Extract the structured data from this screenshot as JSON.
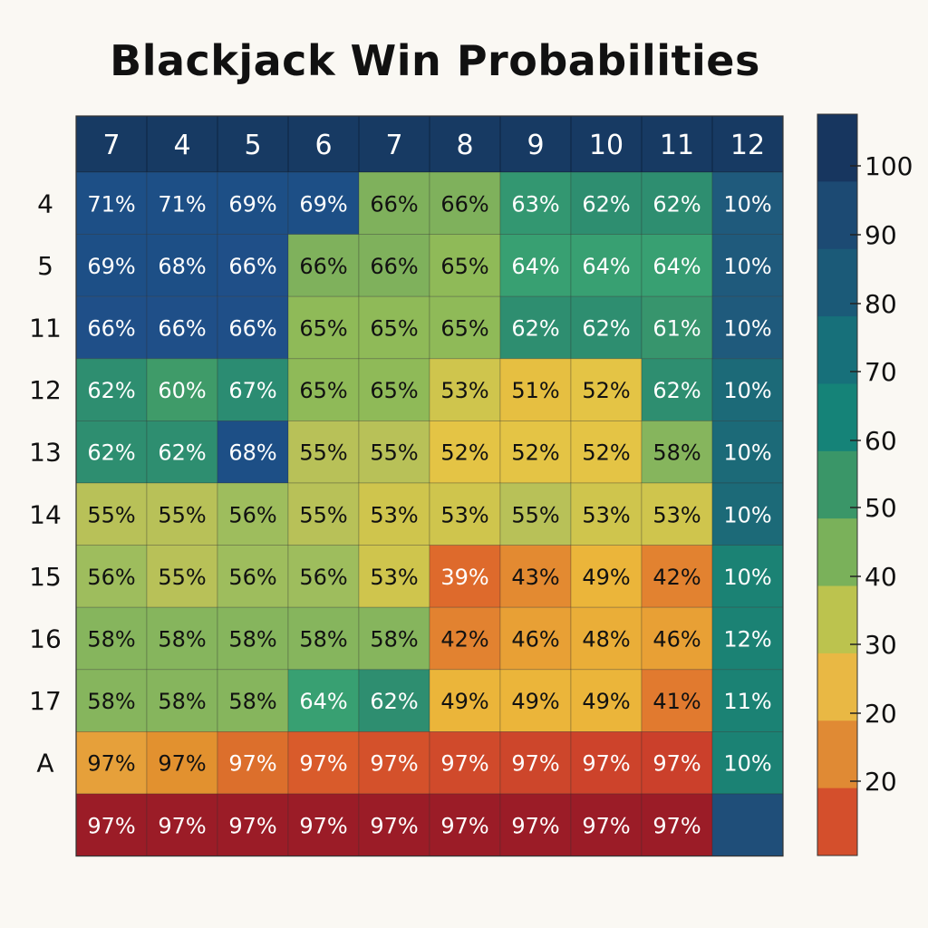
{
  "chart_data": {
    "type": "heatmap",
    "title": "Blackjack Win Probabilities",
    "columns": [
      "7",
      "4",
      "5",
      "6",
      "7",
      "8",
      "9",
      "10",
      "11",
      "12"
    ],
    "rows": [
      "4",
      "5",
      "11",
      "12",
      "13",
      "14",
      "15",
      "16",
      "17",
      "A",
      ""
    ],
    "values": [
      [
        71,
        71,
        69,
        69,
        66,
        66,
        63,
        62,
        62,
        10
      ],
      [
        69,
        68,
        66,
        66,
        66,
        65,
        64,
        64,
        64,
        10
      ],
      [
        66,
        66,
        66,
        65,
        65,
        65,
        62,
        62,
        61,
        10
      ],
      [
        62,
        60,
        67,
        65,
        65,
        53,
        51,
        52,
        62,
        10
      ],
      [
        62,
        62,
        68,
        55,
        55,
        52,
        52,
        52,
        58,
        10
      ],
      [
        55,
        55,
        56,
        55,
        53,
        53,
        55,
        53,
        53,
        10
      ],
      [
        56,
        55,
        56,
        56,
        53,
        39,
        43,
        49,
        42,
        10
      ],
      [
        58,
        58,
        58,
        58,
        58,
        42,
        46,
        48,
        46,
        12
      ],
      [
        58,
        58,
        58,
        64,
        62,
        49,
        49,
        49,
        41,
        11
      ],
      [
        97,
        97,
        97,
        97,
        97,
        97,
        97,
        97,
        97,
        10
      ],
      [
        97,
        97,
        97,
        97,
        97,
        97,
        97,
        97,
        97,
        null
      ]
    ],
    "value_suffix": "%",
    "colorbar": {
      "tick_labels": [
        "100",
        "90",
        "80",
        "70",
        "60",
        "50",
        "40",
        "30",
        "20",
        "20"
      ],
      "band_colors": [
        "#17365f",
        "#1c4a73",
        "#1b5a78",
        "#17707a",
        "#158378",
        "#3a9668",
        "#7ab15a",
        "#bcc34e",
        "#e9b844",
        "#e08a34",
        "#d44f2c"
      ]
    }
  }
}
